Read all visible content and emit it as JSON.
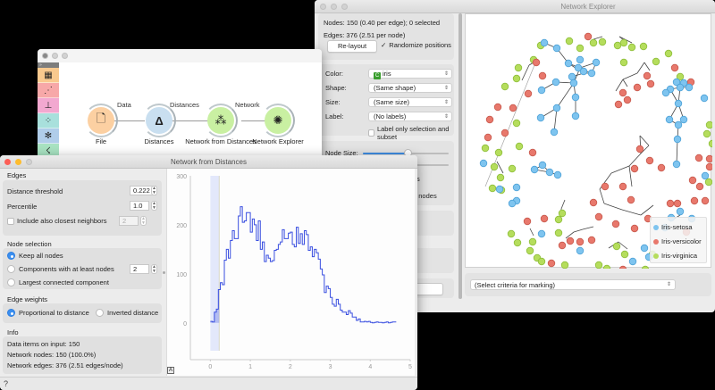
{
  "network_explorer": {
    "title": "Network Explorer",
    "info": {
      "nodes": "Nodes: 150 (0.40 per edge); 0 selected",
      "edges": "Edges: 376 (2.51 per node)"
    },
    "relayout_label": "Re-layout",
    "randomize_label": "Randomize positions",
    "randomize_checked": true,
    "controls": {
      "color_label": "Color:",
      "color_value": "iris",
      "shape_label": "Shape:",
      "shape_value": "(Same shape)",
      "size_label": "Size:",
      "size_value": "(Same size)",
      "label_label": "Label:",
      "label_value": "(No labels)",
      "label_only_selection": "Label only selection and subset"
    },
    "node_size_label": "Node Size:",
    "node_size_value": 0.62,
    "partial_text_1": "s",
    "partial_text_2": "d nodes",
    "partial_button": "ly",
    "marking_select": "(Select criteria for marking)",
    "legend": [
      {
        "label": "Iris-setosa",
        "color": "#7ec4ef"
      },
      {
        "label": "Iris-versicolor",
        "color": "#e8786c"
      },
      {
        "label": "Iris-virginica",
        "color": "#b5dd5c"
      }
    ]
  },
  "canvas": {
    "toolbox": [
      {
        "name": "data-table-icon",
        "glyph": "▦",
        "color": "#f9c98e"
      },
      {
        "name": "scatter-plot-icon",
        "glyph": "⋰",
        "color": "#f7a8a8"
      },
      {
        "name": "tree-icon",
        "glyph": "⊥",
        "color": "#f2a8d0"
      },
      {
        "name": "matrix-icon",
        "glyph": "⁘",
        "color": "#a8e0dc"
      },
      {
        "name": "network-icon",
        "glyph": "✻",
        "color": "#b0cdea"
      },
      {
        "name": "other-icon",
        "glyph": "☇",
        "color": "#a8e3c2"
      }
    ],
    "nodes": [
      {
        "label": "File",
        "glyph": "🗋",
        "color": "#fcd0a2"
      },
      {
        "label": "Distances",
        "glyph": "Δ",
        "color": "#c9dff0"
      },
      {
        "label": "Network from Distances",
        "glyph": "⁂",
        "color": "#c9f0a2"
      },
      {
        "label": "Network Explorer",
        "glyph": "✺",
        "color": "#c9f0a2"
      }
    ],
    "links": [
      "Data",
      "Distances",
      "Network"
    ]
  },
  "network_from_distances": {
    "title": "Network from Distances",
    "edges_section": "Edges",
    "distance_threshold_label": "Distance threshold",
    "distance_threshold_value": "0.222",
    "percentile_label": "Percentile",
    "percentile_value": "1.0",
    "include_neighbors_label": "Include also closest neighbors",
    "include_neighbors_value": "2",
    "node_selection_section": "Node selection",
    "node_selection_options": [
      "Keep all nodes",
      "Components with at least nodes",
      "Largest connected component"
    ],
    "node_selection_selected": 0,
    "components_min_value": "2",
    "edge_weights_section": "Edge weights",
    "edge_weight_options": [
      "Proportional to distance",
      "Inverted distance"
    ],
    "edge_weight_selected": 0,
    "info_section": "Info",
    "info": {
      "data_items": "Data items on input: 150",
      "network_nodes": "Network nodes: 150 (100.0%)",
      "network_edges": "Network edges: 376 (2.51 edges/node)"
    },
    "help_icon": "?"
  },
  "chart_data": {
    "type": "line",
    "title": "",
    "xlabel": "",
    "ylabel": "",
    "xlim": [
      -0.5,
      5
    ],
    "ylim": [
      -75,
      300
    ],
    "xticks": [
      0,
      1,
      2,
      3,
      4,
      5
    ],
    "yticks": [
      0,
      100,
      200,
      300
    ],
    "threshold_x": 0.222,
    "x": [
      0.0,
      0.05,
      0.1,
      0.15,
      0.2,
      0.25,
      0.3,
      0.35,
      0.4,
      0.45,
      0.5,
      0.55,
      0.6,
      0.65,
      0.7,
      0.75,
      0.8,
      0.85,
      0.9,
      0.95,
      1.0,
      1.05,
      1.1,
      1.15,
      1.2,
      1.25,
      1.3,
      1.35,
      1.4,
      1.45,
      1.5,
      1.55,
      1.6,
      1.65,
      1.7,
      1.75,
      1.8,
      1.85,
      1.9,
      1.95,
      2.0,
      2.05,
      2.1,
      2.15,
      2.2,
      2.25,
      2.3,
      2.35,
      2.4,
      2.45,
      2.5,
      2.55,
      2.6,
      2.65,
      2.7,
      2.75,
      2.8,
      2.85,
      2.9,
      2.95,
      3.0,
      3.05,
      3.1,
      3.15,
      3.2,
      3.25,
      3.3,
      3.35,
      3.4,
      3.45,
      3.5,
      3.55,
      3.6,
      3.65,
      3.7,
      3.75,
      3.8,
      3.85,
      3.9,
      3.95,
      4.0,
      4.05,
      4.1,
      4.15,
      4.2,
      4.25,
      4.3,
      4.35,
      4.4,
      4.45,
      4.5,
      4.55,
      4.6
    ],
    "values": [
      3,
      2,
      22,
      28,
      68,
      82,
      78,
      128,
      150,
      132,
      168,
      188,
      172,
      172,
      218,
      237,
      205,
      208,
      225,
      225,
      185,
      212,
      200,
      168,
      208,
      150,
      165,
      125,
      138,
      132,
      125,
      127,
      148,
      150,
      160,
      165,
      190,
      172,
      172,
      183,
      185,
      160,
      155,
      195,
      162,
      182,
      160,
      188,
      180,
      148,
      155,
      135,
      150,
      143,
      130,
      110,
      98,
      62,
      75,
      70,
      52,
      38,
      34,
      48,
      38,
      26,
      22,
      22,
      17,
      25,
      20,
      12,
      12,
      5,
      8,
      2,
      2,
      3,
      2,
      3,
      1,
      0,
      1,
      2,
      1,
      1,
      0,
      1,
      2,
      0,
      1,
      2,
      2
    ],
    "series": [
      {
        "name": "distance histogram",
        "color": "#3a4fe0"
      }
    ]
  }
}
